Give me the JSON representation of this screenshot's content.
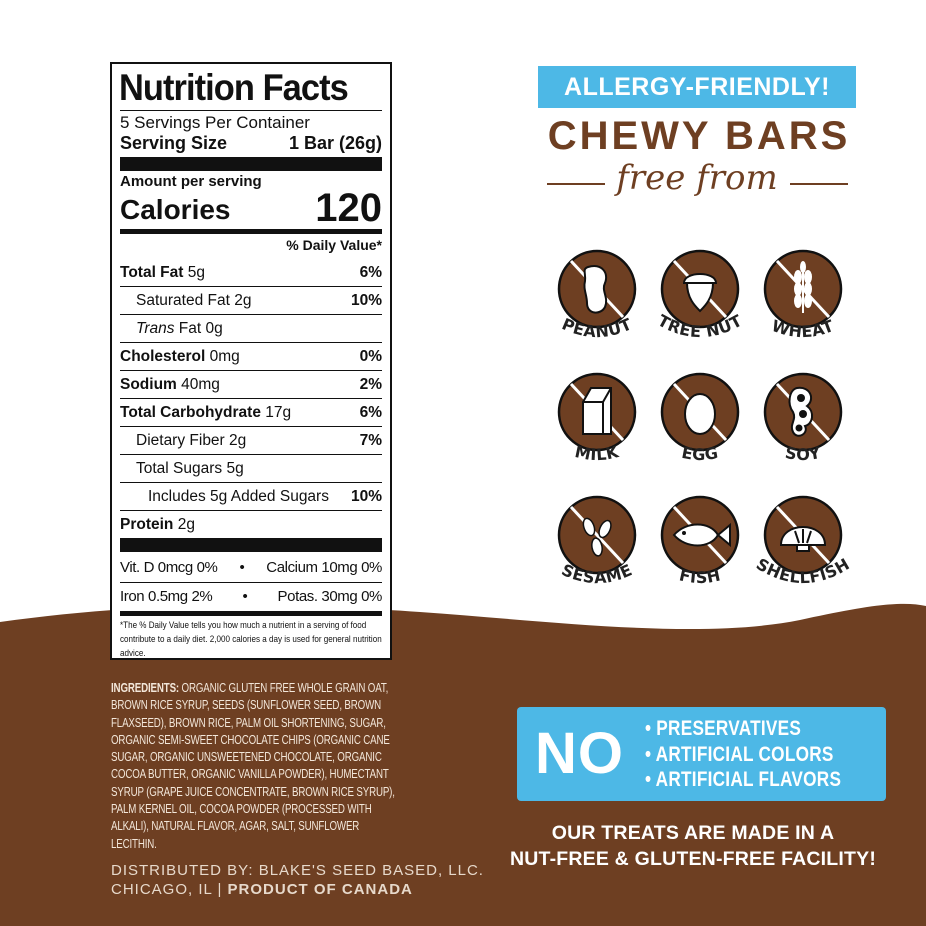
{
  "colors": {
    "brown": "#6e3f22",
    "blue": "#4db8e6",
    "cream": "#f3e7da"
  },
  "nutrition": {
    "title": "Nutrition Facts",
    "servings": "5 Servings Per Container",
    "serving_size_label": "Serving Size",
    "serving_size_value": "1 Bar (26g)",
    "amount_per_serving": "Amount per serving",
    "calories_label": "Calories",
    "calories_value": "120",
    "dv_header": "% Daily Value*",
    "rows": [
      {
        "label": "Total Fat",
        "amount": " 5g",
        "dv": "6%",
        "bold": true,
        "indent": 0
      },
      {
        "label": "Saturated Fat",
        "amount": " 2g",
        "dv": "10%",
        "bold": false,
        "indent": 1
      },
      {
        "label": "Trans",
        "amount": " Fat 0g",
        "dv": "",
        "bold": false,
        "indent": 1,
        "italic": true
      },
      {
        "label": "Cholesterol",
        "amount": " 0mg",
        "dv": "0%",
        "bold": true,
        "indent": 0
      },
      {
        "label": "Sodium",
        "amount": " 40mg",
        "dv": "2%",
        "bold": true,
        "indent": 0
      },
      {
        "label": "Total Carbohydrate",
        "amount": " 17g",
        "dv": "6%",
        "bold": true,
        "indent": 0
      },
      {
        "label": "Dietary Fiber",
        "amount": " 2g",
        "dv": "7%",
        "bold": false,
        "indent": 1
      },
      {
        "label": "Total Sugars",
        "amount": " 5g",
        "dv": "",
        "bold": false,
        "indent": 1
      },
      {
        "label": "Includes 5g Added Sugars",
        "amount": "",
        "dv": "10%",
        "bold": false,
        "indent": 2
      },
      {
        "label": "Protein",
        "amount": " 2g",
        "dv": "",
        "bold": true,
        "indent": 0
      }
    ],
    "vitamins": [
      {
        "left": "Vit. D 0mcg  0%",
        "right": "Calcium 10mg 0%"
      },
      {
        "left": "Iron 0.5mg  2%",
        "right": "Potas. 30mg 0%"
      }
    ],
    "footnote": "*The % Daily Value tells you how much a nutrient in a serving of food contribute to a daily diet. 2,000 calories a day is used for general nutrition advice."
  },
  "ingredients": {
    "label": "INGREDIENTS:",
    "text": " ORGANIC GLUTEN FREE WHOLE GRAIN OAT, BROWN RICE SYRUP, SEEDS (SUNFLOWER SEED, BROWN FLAXSEED), BROWN RICE, PALM OIL SHORTENING, SUGAR, ORGANIC SEMI-SWEET CHOCOLATE CHIPS (ORGANIC CANE SUGAR, ORGANIC UNSWEETENED CHOCOLATE, ORGANIC COCOA BUTTER, ORGANIC VANILLA POWDER), HUMECTANT SYRUP (GRAPE JUICE CONCENTRATE, BROWN RICE SYRUP), PALM KERNEL OIL, COCOA POWDER (PROCESSED WITH ALKALI), NATURAL FLAVOR, AGAR, SALT, SUNFLOWER LECITHIN.",
    "distributed": "DISTRIBUTED BY: BLAKE'S SEED BASED, LLC.",
    "city": "CHICAGO, IL | ",
    "origin": "PRODUCT OF CANADA"
  },
  "header": {
    "badge": "ALLERGY-FRIENDLY!",
    "title": "CHEWY BARS",
    "subtitle": "free from"
  },
  "allergens": [
    {
      "label": "PEANUT",
      "icon": "peanut-icon"
    },
    {
      "label": "TREE NUT",
      "icon": "acorn-icon"
    },
    {
      "label": "WHEAT",
      "icon": "wheat-icon"
    },
    {
      "label": "MILK",
      "icon": "milk-carton-icon"
    },
    {
      "label": "EGG",
      "icon": "egg-icon"
    },
    {
      "label": "SOY",
      "icon": "soybean-icon"
    },
    {
      "label": "SESAME",
      "icon": "sesame-icon"
    },
    {
      "label": "FISH",
      "icon": "fish-icon"
    },
    {
      "label": "SHELLFISH",
      "icon": "shell-icon"
    }
  ],
  "no_box": {
    "word": "NO",
    "items": [
      "• PRESERVATIVES",
      "• ARTIFICIAL COLORS",
      "• ARTIFICIAL FLAVORS"
    ]
  },
  "facility": {
    "line1": "OUR TREATS ARE MADE IN A",
    "line2": "NUT-FREE & GLUTEN-FREE FACILITY!"
  }
}
